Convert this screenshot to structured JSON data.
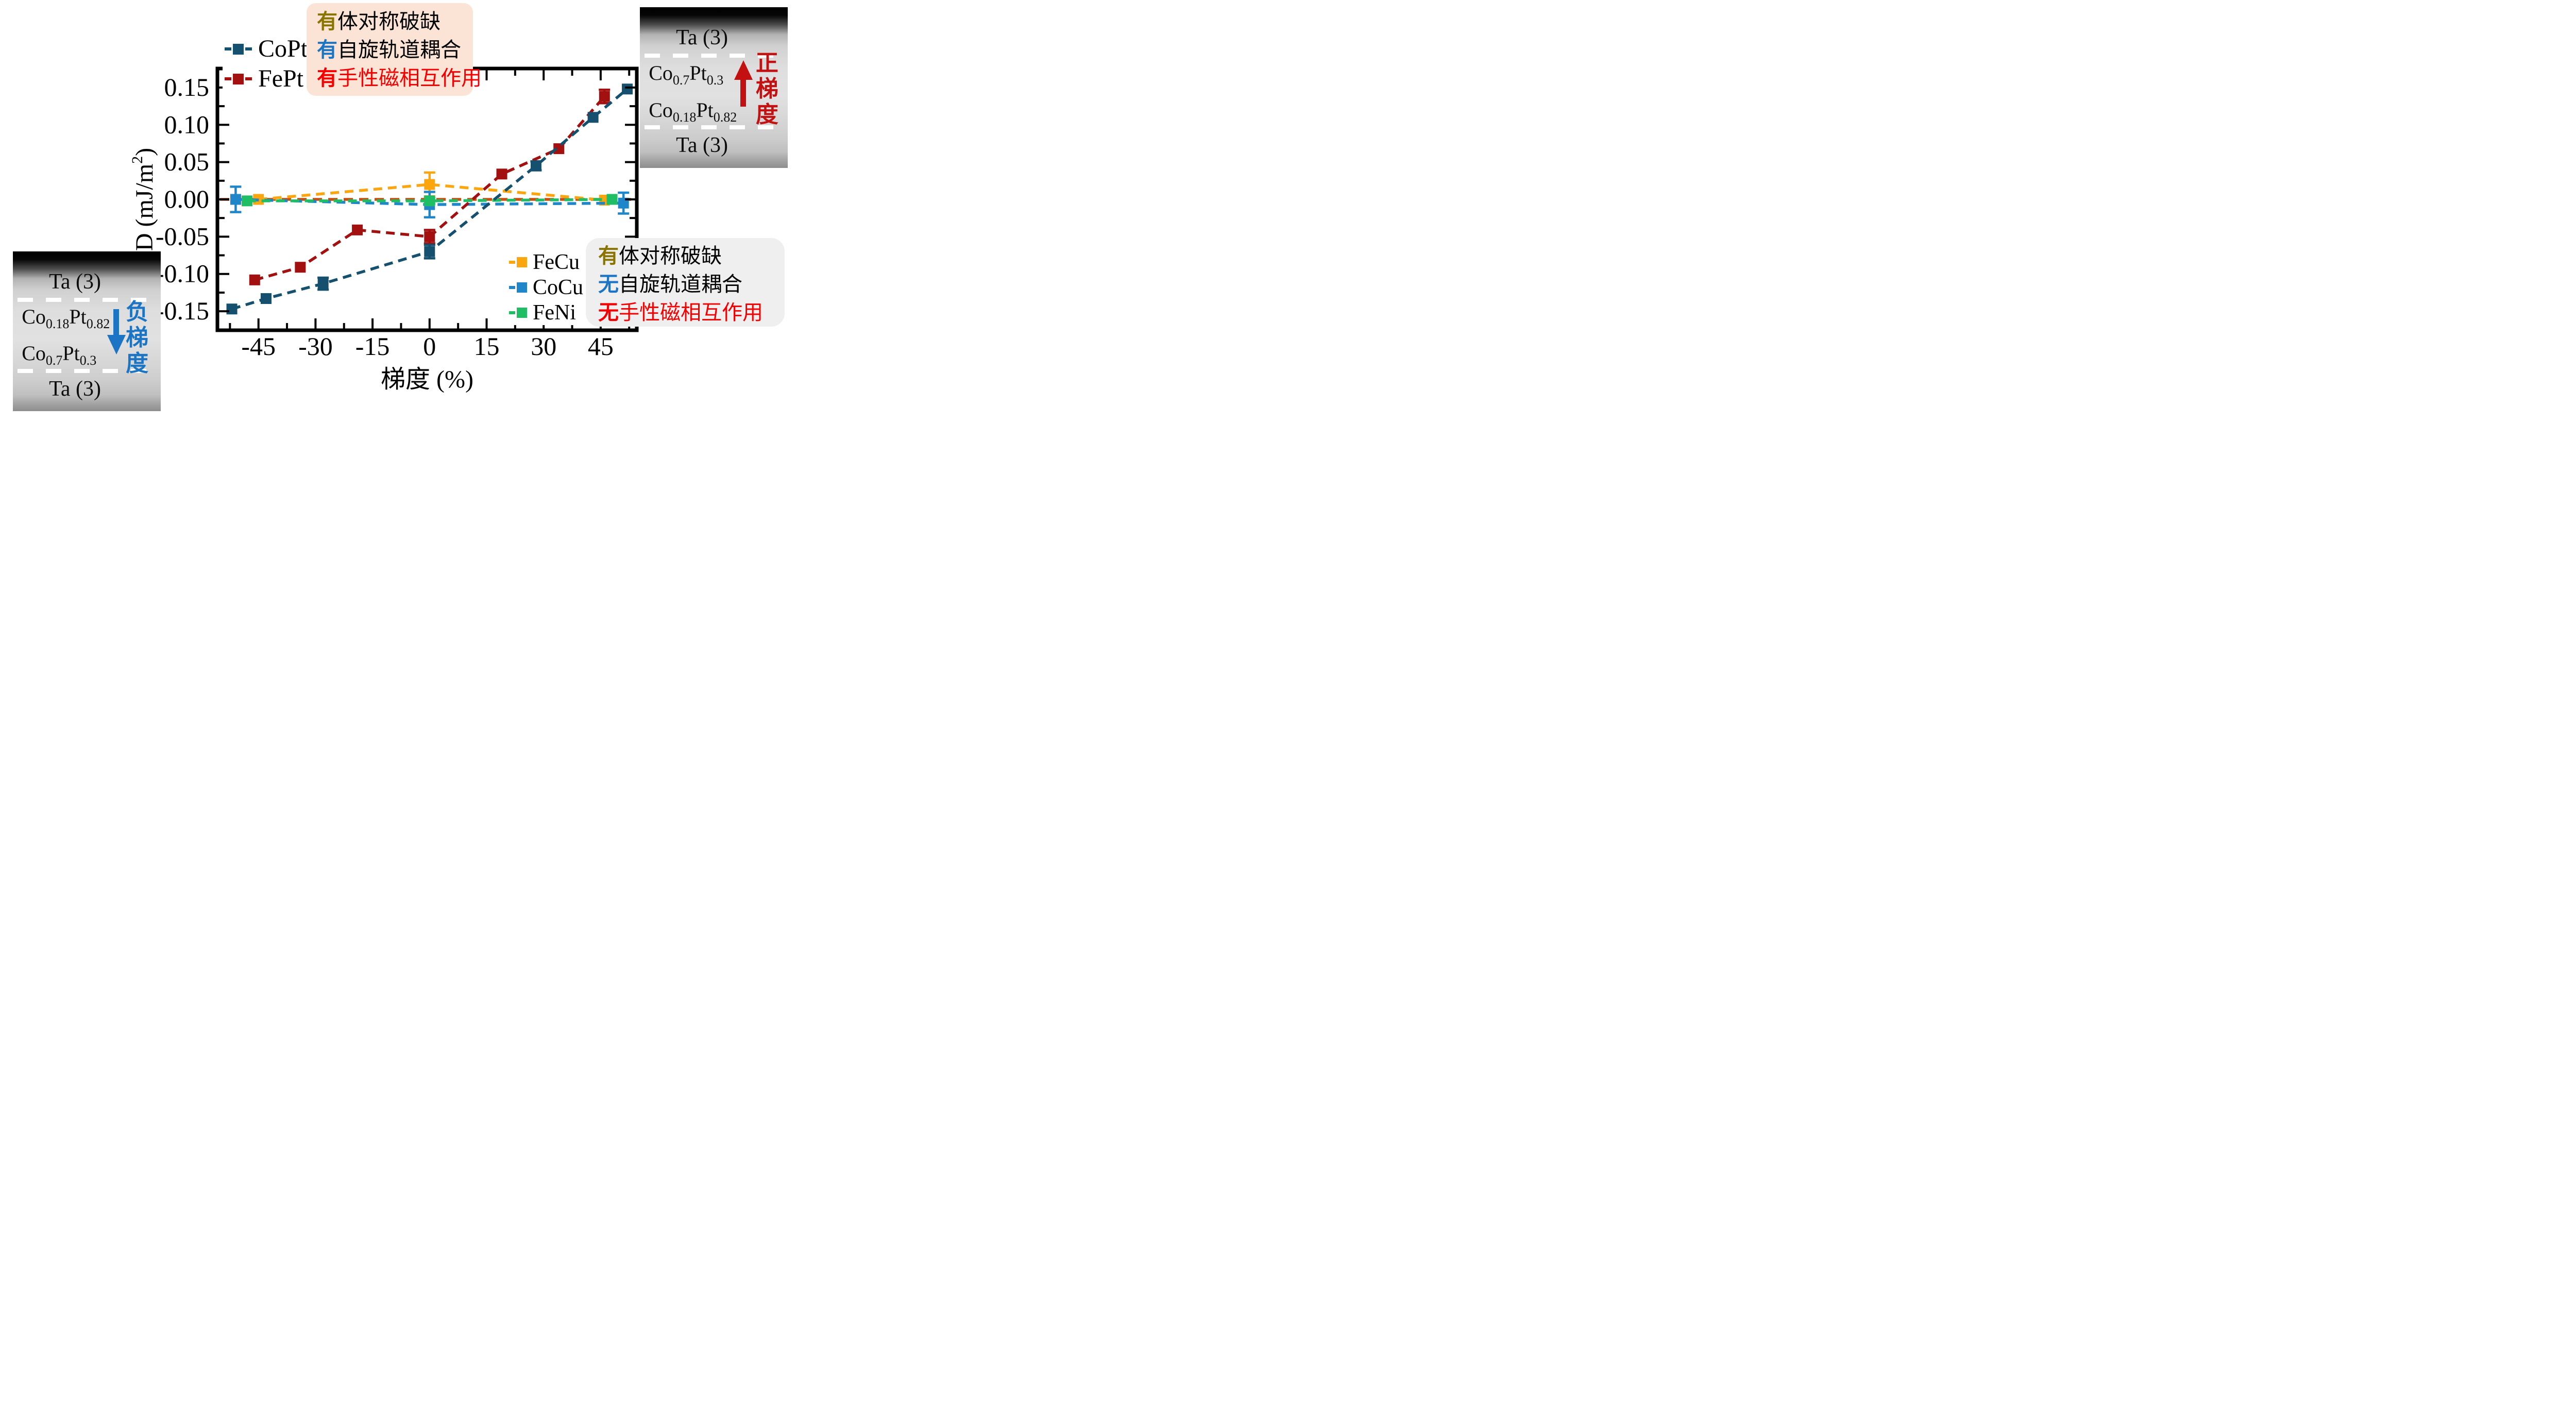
{
  "chart_data": {
    "type": "line",
    "title": "",
    "xlabel": "梯度 (%)",
    "ylabel": {
      "pre": "D (mJ/m",
      "sup": "2",
      "post": ")"
    },
    "xlim": [
      -55.8,
      54.5
    ],
    "ylim": [
      -0.1755,
      0.1755
    ],
    "x_ticks": [
      -45,
      -30,
      -15,
      0,
      15,
      30,
      45
    ],
    "x_minor_ticks": [
      -52.5,
      -37.5,
      -22.5,
      -7.5,
      7.5,
      22.5,
      37.5,
      52.5
    ],
    "y_ticks": [
      0.15,
      0.1,
      0.05,
      0.0,
      -0.05,
      -0.1,
      -0.15
    ],
    "y_minor_ticks": [
      0.175,
      0.125,
      0.075,
      0.025,
      -0.025,
      -0.075,
      -0.125,
      -0.175
    ],
    "grid": false,
    "legend_position": "top-left and middle-right",
    "zero_line": {
      "y": 0,
      "color": "#C94E10"
    },
    "series": [
      {
        "name": "CoPt",
        "color": "#15506F",
        "points": [
          [
            -52,
            -0.147,
            0
          ],
          [
            -43,
            -0.133,
            0
          ],
          [
            -28,
            -0.113,
            0.008
          ],
          [
            0,
            -0.07,
            0.009
          ],
          [
            28,
            0.045,
            0.006
          ],
          [
            43,
            0.11,
            0
          ],
          [
            52,
            0.148,
            0
          ]
        ]
      },
      {
        "name": "FePt",
        "color": "#A31010",
        "points": [
          [
            -46,
            -0.108,
            0
          ],
          [
            -34,
            -0.091,
            0
          ],
          [
            -19,
            -0.041,
            0
          ],
          [
            0,
            -0.05,
            0.009
          ],
          [
            19,
            0.034,
            0
          ],
          [
            34,
            0.068,
            0
          ],
          [
            46,
            0.138,
            0.009
          ]
        ]
      },
      {
        "name": "FeCu",
        "color": "#FBA50F",
        "points": [
          [
            -45,
            0.0,
            0
          ],
          [
            0,
            0.02,
            0.016
          ],
          [
            46,
            -0.001,
            0
          ]
        ]
      },
      {
        "name": "CoCu",
        "color": "#1E86C9",
        "points": [
          [
            -51,
            0.0,
            0.017
          ],
          [
            0,
            -0.007,
            0.017
          ],
          [
            51,
            -0.005,
            0.014
          ]
        ]
      },
      {
        "name": "FeNi",
        "color": "#1FBE64",
        "points": [
          [
            -48,
            -0.002,
            0
          ],
          [
            0,
            -0.002,
            0.004
          ],
          [
            48,
            0.0,
            0
          ]
        ]
      }
    ]
  },
  "annotations": {
    "top_box": {
      "bg": "#FBE4D5",
      "lines": [
        {
          "prefix": "有",
          "prefix_color": "#8A7400",
          "text": "体对称破缺",
          "color": "#000000"
        },
        {
          "prefix": "有",
          "prefix_color": "#1B74C4",
          "text": "自旋轨道耦合",
          "color": "#000000"
        },
        {
          "prefix": "有",
          "prefix_color": "#F40000",
          "text": "手性磁相互作用",
          "color": "#F40000"
        }
      ]
    },
    "bottom_box": {
      "bg": "#EFEFEF",
      "lines": [
        {
          "prefix": "有",
          "prefix_color": "#8A7400",
          "text": "体对称破缺",
          "color": "#000000"
        },
        {
          "prefix": "无",
          "prefix_color": "#1B74C4",
          "text": "自旋轨道耦合",
          "color": "#000000"
        },
        {
          "prefix": "无",
          "prefix_color": "#F40000",
          "text": "手性磁相互作用",
          "color": "#F40000"
        }
      ]
    }
  },
  "insets": {
    "left": {
      "layer_top": "Ta (3)",
      "layer_mid1": {
        "a": "Co",
        "s1": "0.18",
        "b": "Pt",
        "s2": "0.82"
      },
      "layer_mid2": {
        "a": "Co",
        "s1": "0.7",
        "b": "Pt",
        "s2": "0.3"
      },
      "layer_bottom": "Ta (3)",
      "gradient_label": {
        "chars": [
          "负",
          "梯",
          "度"
        ],
        "color": "#1B74C4",
        "arrow": "down"
      }
    },
    "right": {
      "layer_top": "Ta (3)",
      "layer_mid1": {
        "a": "Co",
        "s1": "0.7",
        "b": "Pt",
        "s2": "0.3"
      },
      "layer_mid2": {
        "a": "Co",
        "s1": "0.18",
        "b": "Pt",
        "s2": "0.82"
      },
      "layer_bottom": "Ta (3)",
      "gradient_label": {
        "chars": [
          "正",
          "梯",
          "度"
        ],
        "color": "#C31111",
        "arrow": "up"
      }
    }
  }
}
